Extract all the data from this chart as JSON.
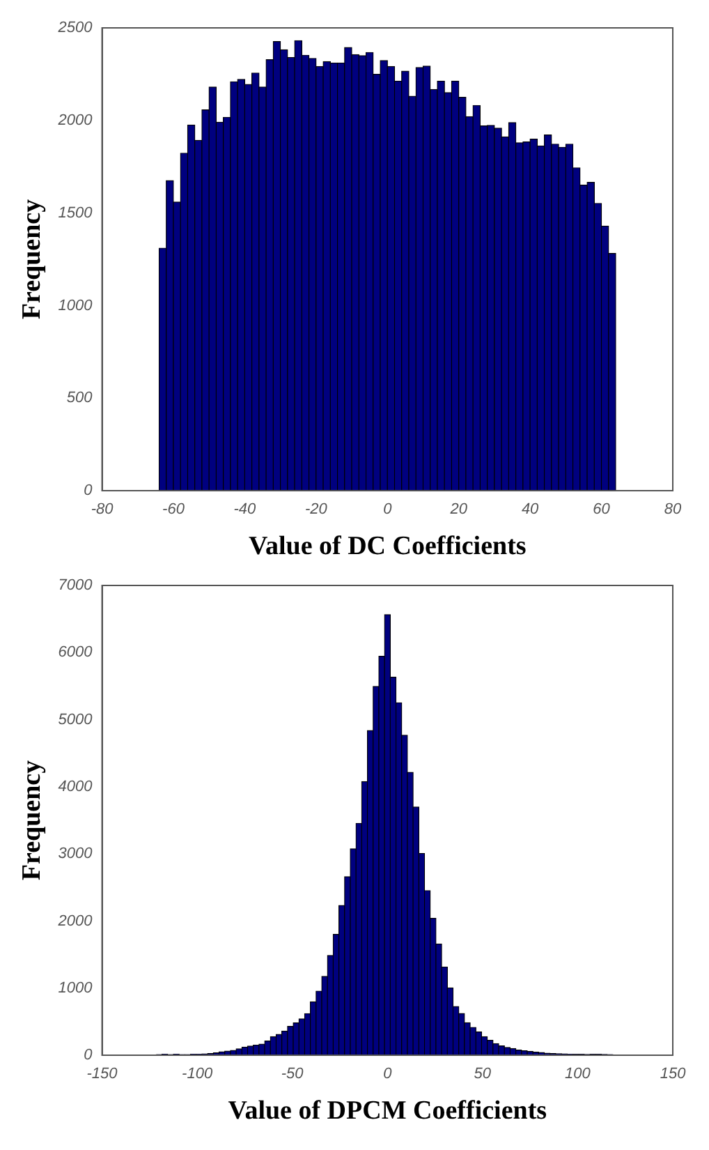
{
  "chart_data": [
    {
      "type": "histogram",
      "xlabel": "Value of DC Coefficients",
      "ylabel": "Frequency",
      "color": "#00007f",
      "bins": [
        -64,
        -62,
        -60,
        -58,
        -56,
        -54,
        -52,
        -50,
        -48,
        -46,
        -44,
        -42,
        -40,
        -38,
        -36,
        -34,
        -32,
        -30,
        -28,
        -26,
        -24,
        -22,
        -20,
        -18,
        -16,
        -14,
        -12,
        -10,
        -8,
        -6,
        -4,
        -2,
        0,
        2,
        4,
        6,
        8,
        10,
        12,
        14,
        16,
        18,
        20,
        22,
        24,
        26,
        28,
        30,
        32,
        34,
        36,
        38,
        40,
        42,
        44,
        46,
        48,
        50,
        52,
        54,
        56,
        58,
        60,
        62,
        64
      ],
      "values": [
        1310,
        1675,
        1559,
        1823,
        1975,
        1892,
        2057,
        2180,
        1990,
        2017,
        2209,
        2222,
        2194,
        2256,
        2180,
        2328,
        2426,
        2382,
        2340,
        2431,
        2352,
        2335,
        2291,
        2318,
        2310,
        2310,
        2394,
        2355,
        2350,
        2367,
        2249,
        2323,
        2291,
        2212,
        2266,
        2130,
        2286,
        2293,
        2167,
        2212,
        2150,
        2212,
        2125,
        2020,
        2081,
        1970,
        1973,
        1958,
        1911,
        1988,
        1879,
        1884,
        1899,
        1862,
        1921,
        1872,
        1855,
        1872,
        1744,
        1650,
        1665,
        1552,
        1429,
        1281
      ],
      "xlim": [
        -80,
        80
      ],
      "xticks": [
        -80,
        -60,
        -40,
        -20,
        0,
        20,
        40,
        60,
        80
      ],
      "ylim": [
        0,
        2500
      ],
      "yticks": [
        0,
        500,
        1000,
        1500,
        2000,
        2500
      ],
      "grid": false,
      "legend": false
    },
    {
      "type": "histogram",
      "xlabel": "Value of DPCM Coefficients",
      "ylabel": "Frequency",
      "color": "#00007f",
      "bins": [
        -121.5,
        -118.5,
        -115.5,
        -112.5,
        -109.5,
        -106.5,
        -103.5,
        -100.5,
        -97.5,
        -94.5,
        -91.5,
        -88.5,
        -85.5,
        -82.5,
        -79.5,
        -76.5,
        -73.5,
        -70.5,
        -67.5,
        -64.5,
        -61.5,
        -58.5,
        -55.5,
        -52.5,
        -49.5,
        -46.5,
        -43.5,
        -40.5,
        -37.5,
        -34.5,
        -31.5,
        -28.5,
        -25.5,
        -22.5,
        -19.5,
        -16.5,
        -13.5,
        -10.5,
        -7.5,
        -4.5,
        -1.5,
        1.5,
        4.5,
        7.5,
        10.5,
        13.5,
        16.5,
        19.5,
        22.5,
        25.5,
        28.5,
        31.5,
        34.5,
        37.5,
        40.5,
        43.5,
        46.5,
        49.5,
        52.5,
        55.5,
        58.5,
        61.5,
        64.5,
        67.5,
        70.5,
        73.5,
        76.5,
        79.5,
        82.5,
        85.5,
        88.5,
        91.5,
        94.5,
        97.5,
        100.5,
        103.5,
        106.5,
        109.5,
        112.5,
        115.5,
        118.5
      ],
      "values": [
        10,
        15,
        10,
        15,
        10,
        10,
        15,
        15,
        20,
        25,
        35,
        50,
        60,
        70,
        95,
        120,
        135,
        150,
        165,
        210,
        275,
        310,
        360,
        430,
        480,
        540,
        620,
        795,
        955,
        1175,
        1485,
        1800,
        2230,
        2660,
        3075,
        3455,
        4077,
        4838,
        5494,
        5943,
        6565,
        5632,
        5252,
        4768,
        4215,
        3697,
        3006,
        2453,
        2038,
        1658,
        1313,
        1002,
        726,
        622,
        484,
        415,
        345,
        276,
        221,
        173,
        138,
        115,
        100,
        75,
        65,
        55,
        45,
        40,
        30,
        25,
        21,
        18,
        15,
        14,
        14,
        12,
        14,
        14,
        12,
        10
      ],
      "xlim": [
        -150,
        150
      ],
      "xticks": [
        -150,
        -100,
        -50,
        0,
        50,
        100,
        150
      ],
      "ylim": [
        0,
        7000
      ],
      "yticks": [
        0,
        1000,
        2000,
        3000,
        4000,
        5000,
        6000,
        7000
      ],
      "grid": false,
      "legend": false
    }
  ]
}
